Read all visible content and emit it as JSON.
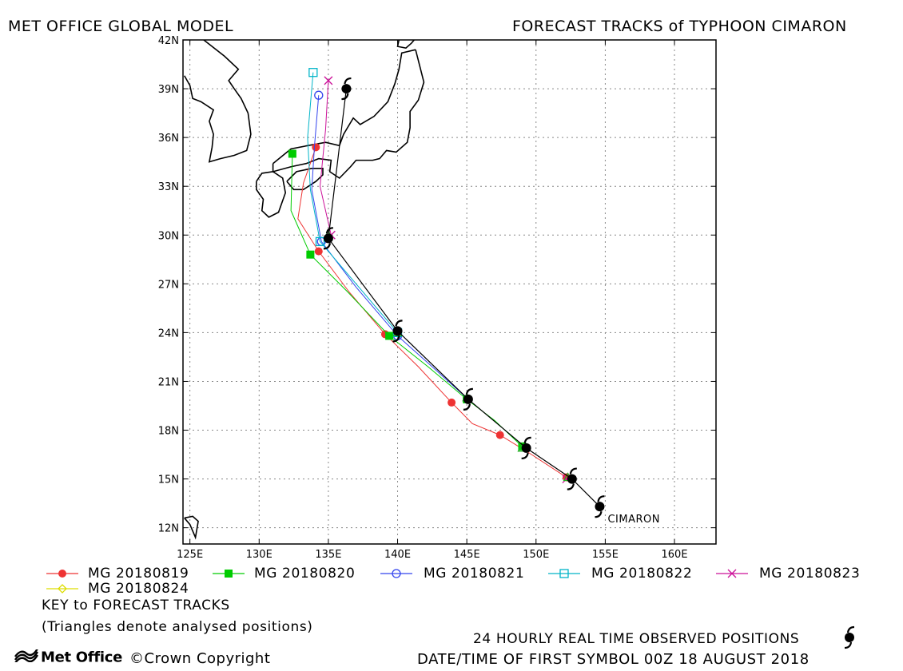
{
  "header": {
    "left_title": "MET OFFICE GLOBAL MODEL",
    "right_title": "FORECAST TRACKS of TYPHOON CIMARON"
  },
  "colors": {
    "observed": "#000000",
    "run_20180819": "#ee3333",
    "run_20180820": "#00cc00",
    "run_20180821": "#3344ee",
    "run_20180822": "#00b4c8",
    "run_20180823": "#cc1199",
    "run_20180824": "#dddd00",
    "grid": "#888888",
    "coast": "#000000"
  },
  "chart_data": {
    "type": "scatter",
    "title": "FORECAST TRACKS of TYPHOON CIMARON",
    "xlim": [
      124.5,
      163
    ],
    "ylim": [
      11,
      42
    ],
    "x_ticks": [
      125,
      130,
      135,
      140,
      145,
      150,
      155,
      160
    ],
    "x_tick_labels": [
      "125E",
      "130E",
      "135E",
      "140E",
      "145E",
      "150E",
      "155E",
      "160E"
    ],
    "y_ticks": [
      12,
      15,
      18,
      21,
      24,
      27,
      30,
      33,
      36,
      39,
      42
    ],
    "y_tick_labels": [
      "12N",
      "15N",
      "18N",
      "21N",
      "24N",
      "27N",
      "30N",
      "33N",
      "36N",
      "39N",
      "42N"
    ],
    "grid": true,
    "storm_label": "CIMARON",
    "observed": {
      "name": "24 HOURLY REAL TIME OBSERVED POSITIONS",
      "points": [
        [
          154.6,
          13.3
        ],
        [
          152.6,
          15.0
        ],
        [
          149.3,
          16.9
        ],
        [
          145.1,
          19.9
        ],
        [
          140.0,
          24.1
        ],
        [
          135.0,
          29.8
        ],
        [
          136.3,
          39.0
        ]
      ]
    },
    "series": [
      {
        "name": "MG 20180819",
        "marker": "circle",
        "points": [
          [
            152.2,
            15.1
          ],
          [
            147.4,
            17.7
          ],
          [
            143.9,
            19.7
          ],
          [
            139.1,
            23.9
          ],
          [
            134.3,
            29.0
          ],
          [
            134.1,
            35.4
          ]
        ],
        "track": [
          [
            152.2,
            15.1
          ],
          [
            149.5,
            16.6
          ],
          [
            147.4,
            17.7
          ],
          [
            145.4,
            18.4
          ],
          [
            143.9,
            19.7
          ],
          [
            141.5,
            21.9
          ],
          [
            139.1,
            23.9
          ],
          [
            136.5,
            26.5
          ],
          [
            134.3,
            29.0
          ],
          [
            132.8,
            31.0
          ],
          [
            133.2,
            33.2
          ],
          [
            134.1,
            35.4
          ]
        ]
      },
      {
        "name": "MG 20180820",
        "marker": "square",
        "points": [
          [
            149.0,
            17.0
          ],
          [
            145.0,
            19.9
          ],
          [
            139.4,
            23.8
          ],
          [
            133.7,
            28.8
          ],
          [
            132.4,
            35.0
          ]
        ],
        "track": [
          [
            149.0,
            17.0
          ],
          [
            147.0,
            18.6
          ],
          [
            145.0,
            19.9
          ],
          [
            142.2,
            21.9
          ],
          [
            139.4,
            23.8
          ],
          [
            136.4,
            26.5
          ],
          [
            133.7,
            28.8
          ],
          [
            132.3,
            31.5
          ],
          [
            132.4,
            35.0
          ]
        ]
      },
      {
        "name": "MG 20180821",
        "marker": "circle-open",
        "points": [
          [
            145.1,
            19.9
          ],
          [
            140.0,
            23.8
          ],
          [
            134.5,
            29.6
          ],
          [
            134.3,
            38.6
          ]
        ],
        "track": [
          [
            145.1,
            19.9
          ],
          [
            142.5,
            21.9
          ],
          [
            140.0,
            23.8
          ],
          [
            137.0,
            26.8
          ],
          [
            134.5,
            29.6
          ],
          [
            133.8,
            32.8
          ],
          [
            134.0,
            35.5
          ],
          [
            134.3,
            38.6
          ]
        ]
      },
      {
        "name": "MG 20180822",
        "marker": "square-open",
        "points": [
          [
            140.0,
            24.0
          ],
          [
            134.4,
            29.6
          ],
          [
            133.9,
            40.0
          ]
        ],
        "track": [
          [
            140.0,
            24.0
          ],
          [
            137.0,
            27.0
          ],
          [
            134.4,
            29.6
          ],
          [
            133.7,
            32.8
          ],
          [
            133.5,
            36.0
          ],
          [
            133.9,
            40.0
          ]
        ]
      },
      {
        "name": "MG 20180823",
        "marker": "x",
        "points": [
          [
            152.2,
            15.0
          ],
          [
            135.2,
            30.0
          ],
          [
            135.0,
            39.5
          ]
        ],
        "track": [
          [
            135.2,
            30.0
          ],
          [
            134.4,
            33.0
          ],
          [
            134.8,
            36.5
          ],
          [
            135.0,
            39.5
          ]
        ]
      },
      {
        "name": "MG 20180824",
        "marker": "diamond-open",
        "points": [],
        "track": []
      }
    ],
    "analysed_triangles": [
      [
        152.3,
        15.1
      ],
      [
        149.0,
        16.9
      ],
      [
        145.0,
        20.0
      ],
      [
        140.0,
        24.0
      ],
      [
        135.0,
        30.0
      ]
    ]
  },
  "legend": {
    "items": [
      "MG 20180819",
      "MG 20180820",
      "MG 20180821",
      "MG 20180822",
      "MG 20180823",
      "MG 20180824"
    ],
    "key_title": "KEY to FORECAST TRACKS",
    "key_note": "(Triangles denote analysed positions)"
  },
  "footer": {
    "observed_label": "24 HOURLY REAL TIME OBSERVED POSITIONS",
    "datetime_label": "DATE/TIME OF FIRST SYMBOL 00Z 18 AUGUST 2018",
    "logo_text": "Met Office",
    "copyright": "©Crown Copyright"
  }
}
